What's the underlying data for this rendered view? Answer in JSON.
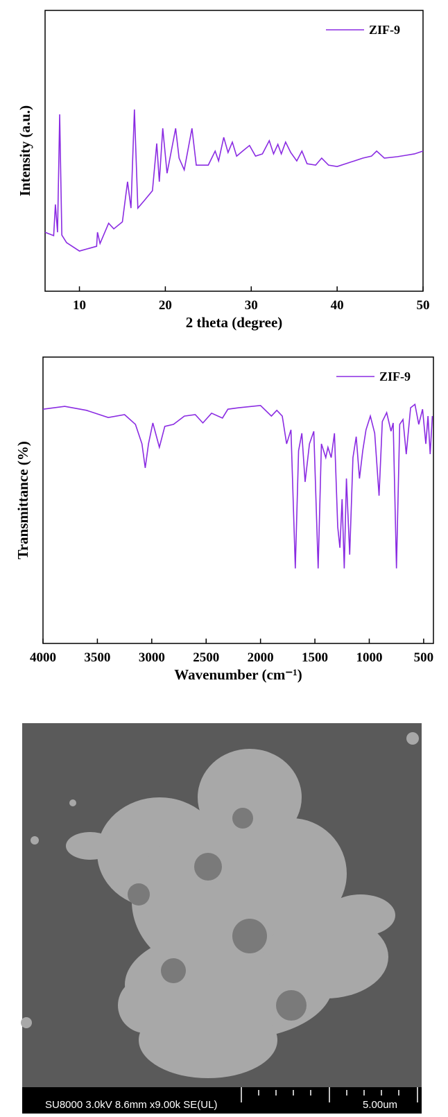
{
  "chart_data": [
    {
      "type": "line",
      "x_label": "2 theta (degree)",
      "y_label": "Intensity (a.u.)",
      "xlim": [
        6,
        50
      ],
      "xticks": [
        10,
        20,
        30,
        40,
        50
      ],
      "ylim": [
        0,
        100
      ],
      "legend": "top-right",
      "x": [
        6,
        7,
        7.2,
        7.45,
        7.7,
        7.95,
        8.5,
        10,
        12,
        12.1,
        12.4,
        13.4,
        14,
        15,
        15.6,
        16,
        16.4,
        16.8,
        17.5,
        18.5,
        19,
        19.3,
        19.7,
        20.2,
        21.2,
        21.6,
        22.2,
        23.1,
        23.6,
        25,
        25.8,
        26.2,
        26.8,
        27.3,
        27.8,
        28.3,
        29,
        29.8,
        30.5,
        31.3,
        32.1,
        32.6,
        33.1,
        33.5,
        34,
        34.6,
        35.3,
        35.9,
        36.5,
        37.5,
        38.2,
        39,
        40,
        41,
        42,
        43,
        44,
        44.6,
        45.5,
        47,
        48,
        49,
        50
      ],
      "series": [
        {
          "name": "ZIF-9",
          "color": "#8a2be2",
          "values": [
            21,
            19.8,
            30.9,
            21,
            63,
            20,
            17.3,
            14.3,
            16,
            21,
            17,
            24.2,
            22.2,
            24.7,
            39,
            29.6,
            64.7,
            29.6,
            32.1,
            35.8,
            52.6,
            39,
            58,
            42,
            58,
            47.4,
            43.2,
            58,
            44.9,
            44.9,
            49.9,
            46.4,
            54.8,
            49.4,
            53.1,
            48.1,
            49.9,
            51.9,
            48.1,
            48.9,
            53.6,
            48.9,
            52.3,
            48.9,
            53.1,
            49.4,
            46.4,
            49.9,
            45.4,
            44.9,
            47.4,
            44.9,
            44.4,
            45.4,
            46.4,
            47.4,
            48.1,
            49.9,
            47.4,
            47.9,
            48.4,
            48.9,
            49.9
          ]
        }
      ]
    },
    {
      "type": "line",
      "x_label": "Wavenumber (cm⁻¹)",
      "y_label": "Transmittance (%)",
      "xlim": [
        4000,
        410
      ],
      "xticks": [
        4000,
        3500,
        3000,
        2500,
        2000,
        1500,
        1000,
        500
      ],
      "ylim": [
        0,
        100
      ],
      "legend": "top-right",
      "x": [
        4000,
        3800,
        3600,
        3400,
        3250,
        3150,
        3090,
        3060,
        3030,
        2990,
        2930,
        2880,
        2800,
        2700,
        2600,
        2530,
        2450,
        2350,
        2300,
        2200,
        2000,
        1900,
        1850,
        1800,
        1760,
        1720,
        1680,
        1650,
        1620,
        1590,
        1550,
        1510,
        1470,
        1440,
        1400,
        1380,
        1350,
        1320,
        1290,
        1270,
        1250,
        1230,
        1210,
        1180,
        1150,
        1120,
        1090,
        1060,
        1030,
        990,
        950,
        910,
        880,
        840,
        800,
        780,
        750,
        720,
        690,
        660,
        620,
        580,
        545,
        510,
        480,
        460,
        440,
        420
      ],
      "series": [
        {
          "name": "ZIF-9",
          "color": "#8a2be2",
          "values": [
            81.8,
            82.8,
            81.4,
            78.9,
            79.9,
            76.5,
            69.7,
            61.3,
            69.7,
            77,
            68.5,
            75.8,
            76.5,
            79.4,
            79.9,
            77,
            80.4,
            78.7,
            81.8,
            82.3,
            83.1,
            79.4,
            81.4,
            79.4,
            69.7,
            74.6,
            26.2,
            67.3,
            73.4,
            56.4,
            69.7,
            74.1,
            26.2,
            69.7,
            64.9,
            68.5,
            64.9,
            73.4,
            40.7,
            33.4,
            50.4,
            26.2,
            57.6,
            31,
            64.9,
            72.2,
            57.6,
            67.3,
            74.6,
            79.4,
            73.4,
            51.6,
            77.5,
            80.6,
            74.1,
            77,
            26.2,
            76.5,
            78.2,
            66.1,
            82.3,
            83.5,
            76.5,
            81.8,
            69.7,
            79.4,
            66.1,
            79.4
          ]
        }
      ]
    }
  ],
  "image": {
    "info": "SU8000 3.0kV 8.6mm x9.00k SE(UL)",
    "scale": "5.00um"
  }
}
